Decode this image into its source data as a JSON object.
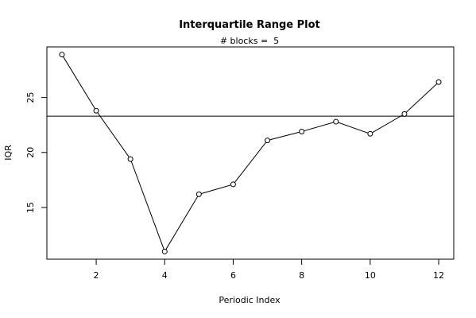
{
  "chart_data": {
    "type": "line",
    "title": "Interquartile Range Plot",
    "subtitle": "# blocks =  5",
    "xlabel": "Periodic Index",
    "ylabel": "IQR",
    "x": [
      1,
      2,
      3,
      4,
      5,
      6,
      7,
      8,
      9,
      10,
      11,
      12
    ],
    "y": [
      28.9,
      23.8,
      19.4,
      11.0,
      16.2,
      17.1,
      21.1,
      21.9,
      22.8,
      21.7,
      23.5,
      26.4
    ],
    "reference_line": 23.3,
    "xlim": [
      0.56,
      12.44
    ],
    "ylim": [
      10.3,
      29.6
    ],
    "x_ticks": [
      2,
      4,
      6,
      8,
      10,
      12
    ],
    "y_ticks": [
      15,
      20,
      25
    ],
    "grid": false,
    "series_style": "line with open circle markers",
    "colors": {
      "line": "#000000",
      "background": "#ffffff"
    }
  }
}
